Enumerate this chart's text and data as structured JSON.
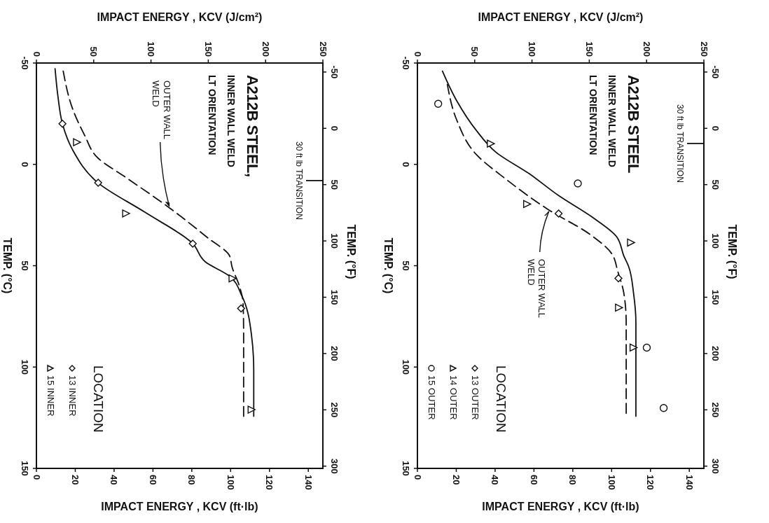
{
  "chart_data": [
    {
      "type": "scatter",
      "title": "A212B STEEL,",
      "subtitle": "INNER WALL WELD\nLT ORIENTATION",
      "xlabel": "IMPACT ENERGY , KCV (ft·lb)",
      "x2label": "IMPACT ENERGY , KCV (J/cm²)",
      "ylabel": "TEMP. (°C)",
      "y2label": "TEMP. (°F)",
      "legend_title": "LOCATION",
      "legend": "bottom left",
      "grid": false,
      "xlim": [
        0,
        147.5
      ],
      "xticks": [
        0,
        20,
        40,
        60,
        80,
        100,
        120,
        140
      ],
      "x2lim": [
        0,
        250
      ],
      "x2ticks": [
        0,
        50,
        100,
        150,
        200,
        250
      ],
      "ylim": [
        150,
        -50
      ],
      "yticks": [
        -50,
        0,
        50,
        100,
        150
      ],
      "y2lim": [
        302,
        -58
      ],
      "y2ticks": [
        -50,
        0,
        50,
        100,
        150,
        200,
        250,
        300
      ],
      "ref_lines": [
        {
          "axis": "y",
          "value": 8,
          "label": "30 ft lb TRANSITION"
        }
      ],
      "annotations": [
        {
          "text": "OUTER WALL WELD",
          "x": 68.4,
          "y": 21.4
        }
      ],
      "series": [
        {
          "type": "line",
          "color": "#111111",
          "line_style": "solid",
          "marker": "none",
          "x": [
            9.6,
            11.1,
            13.4,
            18.6,
            31.7,
            56,
            80.5,
            87,
            99.5,
            105.7,
            110.7,
            111.9,
            111.9
          ],
          "values": [
            -47.2,
            -33.4,
            -20,
            -7.2,
            9.1,
            23.7,
            39.1,
            48.1,
            55.2,
            64.7,
            83.8,
            101.6,
            124.3
          ]
        },
        {
          "type": "line",
          "color": "#111111",
          "line_style": "dashed",
          "marker": "none",
          "x": [
            13.8,
            18.6,
            24.8,
            31.7,
            46,
            68.4,
            88.3,
            99.5,
            100.7,
            104.5,
            106.4,
            106.7,
            106.7
          ],
          "values": [
            -46,
            -27.5,
            -14.4,
            -3.1,
            6.4,
            21.4,
            36.3,
            45.2,
            50.5,
            60,
            68.3,
            83.8,
            124.3
          ]
        },
        {
          "name": "13 INNER",
          "color": "#111111",
          "marker": "diamond",
          "x": [
            13.4,
            31.8,
            80.5,
            105.4
          ],
          "values": [
            -20,
            9.1,
            39.1,
            71.1
          ]
        },
        {
          "name": "15 INNER",
          "color": "#111111",
          "marker": "triangle",
          "x": [
            20.9,
            46.2,
            101,
            110.8
          ],
          "values": [
            -10.9,
            24.2,
            56.3,
            121
          ]
        }
      ]
    },
    {
      "type": "scatter",
      "title": "A212B STEEL",
      "subtitle": "INNER WALL WELD\nLT ORIENTATION",
      "xlabel": "IMPACT ENERGY , KCV (ft·lb)",
      "x2label": "IMPACT ENERGY , KCV (J/cm²)",
      "ylabel": "TEMP. (°C)",
      "y2label": "TEMP. (°F)",
      "legend_title": "LOCATION",
      "legend": "bottom left",
      "grid": false,
      "xlim": [
        0,
        147.5
      ],
      "xticks": [
        0,
        20,
        40,
        60,
        80,
        100,
        120,
        140
      ],
      "x2lim": [
        0,
        250
      ],
      "x2ticks": [
        0,
        50,
        100,
        150,
        200,
        250
      ],
      "ylim": [
        150,
        -50
      ],
      "yticks": [
        -50,
        0,
        50,
        100,
        150
      ],
      "y2lim": [
        302,
        -58
      ],
      "y2ticks": [
        -50,
        0,
        50,
        100,
        150,
        200,
        250,
        300
      ],
      "ref_lines": [
        {
          "axis": "y",
          "value": -10.3,
          "label": "30 ft lb TRANSITION"
        }
      ],
      "annotations": [
        {
          "text": "OUTER WALL WELD",
          "x": 67.7,
          "y": 22.5
        }
      ],
      "series": [
        {
          "type": "line",
          "color": "#111111",
          "line_style": "solid",
          "marker": "none",
          "x": [
            12.9,
            20.4,
            30.3,
            40.3,
            57.7,
            72.7,
            90.1,
            102.5,
            106.3,
            108.8,
            111.3,
            112.5,
            112.5
          ],
          "values": [
            -46,
            -31.1,
            -16.8,
            -6.1,
            4.7,
            15.4,
            26.1,
            35.6,
            45.2,
            50.5,
            63.6,
            77.9,
            124.3
          ]
        },
        {
          "type": "line",
          "color": "#111111",
          "line_style": "dashed",
          "marker": "none",
          "x": [
            15.4,
            20.4,
            30.3,
            45.3,
            67.7,
            88.8,
            100,
            103.2,
            106.3,
            107.5,
            107.5
          ],
          "values": [
            -39.4,
            -21.5,
            -4.9,
            7.1,
            22.5,
            34.5,
            44,
            52.9,
            63.6,
            77.9,
            124.3
          ]
        },
        {
          "name": "13 OUTER",
          "color": "#111111",
          "marker": "diamond",
          "x": [
            72.7,
            103.5
          ],
          "values": [
            24.3,
            56.2
          ]
        },
        {
          "name": "14 OUTER",
          "color": "#111111",
          "marker": "triangle",
          "x": [
            37.8,
            56.5,
            110,
            103.8,
            111.3
          ],
          "values": [
            -10.2,
            19.6,
            38.6,
            70.7,
            90.4
          ]
        },
        {
          "name": "15 OUTER",
          "color": "#111111",
          "marker": "circle",
          "x": [
            10.7,
            82.6,
            118.1,
            126.8
          ],
          "values": [
            -29.9,
            9.4,
            90.4,
            120.2
          ]
        }
      ]
    }
  ]
}
